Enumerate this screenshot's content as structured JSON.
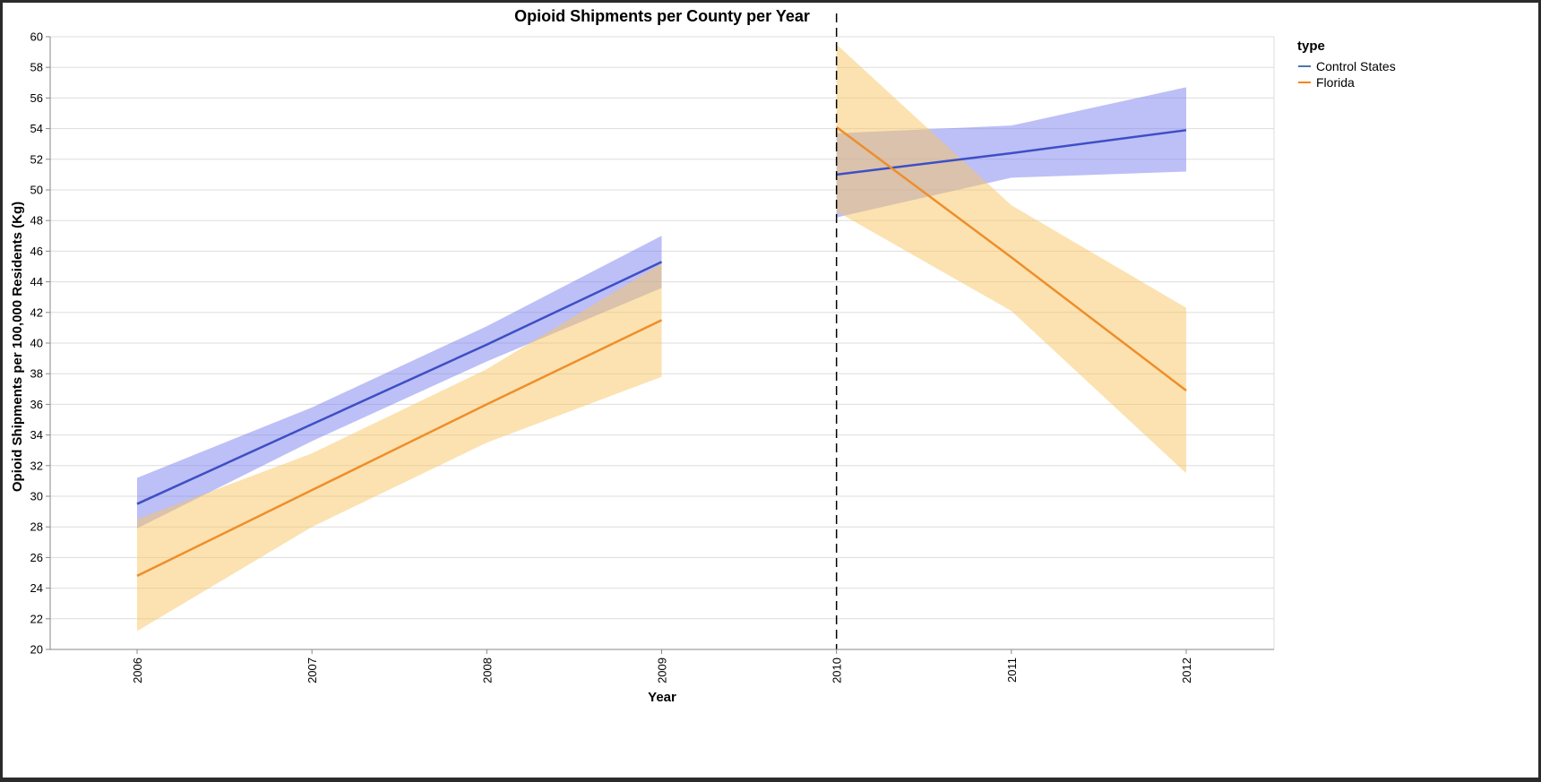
{
  "chart_data": {
    "type": "line",
    "title": "Opioid Shipments per County per Year",
    "xlabel": "Year",
    "ylabel": "Opioid Shipments per 100,000 Residents (Kg)",
    "x_categories": [
      "2006",
      "2007",
      "2008",
      "2009",
      "2010",
      "2011",
      "2012"
    ],
    "ylim": [
      20,
      60
    ],
    "y_ticks": [
      20,
      22,
      24,
      26,
      28,
      30,
      32,
      34,
      36,
      38,
      40,
      42,
      44,
      46,
      48,
      50,
      52,
      54,
      56,
      58,
      60
    ],
    "grid": true,
    "legend": {
      "title": "type",
      "position": "top-right"
    },
    "vertical_rule": {
      "x": 2010,
      "style": "dashed"
    },
    "series": [
      {
        "name": "Control States",
        "legend_color": "#4c78a8",
        "line_color": "#3d4fc4",
        "band_color": "#7b80f0",
        "segments": [
          {
            "x": [
              2006,
              2007,
              2008,
              2009
            ],
            "y": [
              29.5,
              34.7,
              39.9,
              45.3
            ],
            "lower": [
              27.9,
              33.6,
              38.8,
              43.6
            ],
            "upper": [
              31.2,
              35.8,
              41.1,
              47.0
            ]
          },
          {
            "x": [
              2010,
              2011,
              2012
            ],
            "y": [
              51.0,
              52.4,
              53.9
            ],
            "lower": [
              48.2,
              50.8,
              51.2
            ],
            "upper": [
              53.7,
              54.2,
              56.7
            ]
          }
        ]
      },
      {
        "name": "Florida",
        "legend_color": "#f58518",
        "line_color": "#ee8e2b",
        "band_color": "#f8c561",
        "segments": [
          {
            "x": [
              2006,
              2007,
              2008,
              2009
            ],
            "y": [
              24.8,
              30.4,
              36.0,
              41.5
            ],
            "lower": [
              21.2,
              28.0,
              33.5,
              37.8
            ],
            "upper": [
              28.5,
              32.8,
              38.3,
              45.2
            ]
          },
          {
            "x": [
              2010,
              2011,
              2012
            ],
            "y": [
              54.1,
              45.6,
              36.9
            ],
            "lower": [
              48.6,
              42.1,
              31.5
            ],
            "upper": [
              59.5,
              49.0,
              42.3
            ]
          }
        ]
      }
    ]
  }
}
